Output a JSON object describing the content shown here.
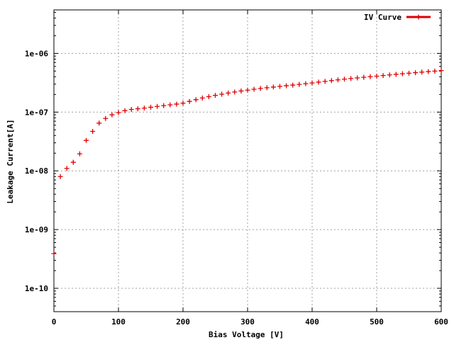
{
  "chart_data": {
    "type": "scatter",
    "title": "",
    "xlabel": "Bias Voltage [V]",
    "ylabel": "Leakage Current[A]",
    "xlim": [
      0,
      600
    ],
    "ylim": [
      4e-11,
      5.5e-06
    ],
    "yscale": "log",
    "grid": true,
    "legend_position": "top-right",
    "x_ticks": [
      0,
      100,
      200,
      300,
      400,
      500,
      600
    ],
    "x_tick_labels": [
      "0",
      "100",
      "200",
      "300",
      "400",
      "500",
      "600"
    ],
    "y_ticks": [
      1e-10,
      1e-09,
      1e-08,
      1e-07,
      1e-06
    ],
    "y_tick_labels": [
      "1e-10",
      "1e-09",
      "1e-08",
      "1e-07",
      "1e-06"
    ],
    "series": [
      {
        "name": "IV Curve",
        "color": "#e00000",
        "marker": "plus",
        "x": [
          0,
          10,
          20,
          30,
          40,
          50,
          60,
          70,
          80,
          90,
          100,
          110,
          120,
          130,
          140,
          150,
          160,
          170,
          180,
          190,
          200,
          210,
          220,
          230,
          240,
          250,
          260,
          270,
          280,
          290,
          300,
          310,
          320,
          330,
          340,
          350,
          360,
          370,
          380,
          390,
          400,
          410,
          420,
          430,
          440,
          450,
          460,
          470,
          480,
          490,
          500,
          510,
          520,
          530,
          540,
          550,
          560,
          570,
          580,
          590,
          600
        ],
        "y": [
          3.9e-10,
          8e-09,
          1.1e-08,
          1.4e-08,
          1.95e-08,
          3.3e-08,
          4.7e-08,
          6.5e-08,
          7.8e-08,
          9e-08,
          9.8e-08,
          1.06e-07,
          1.11e-07,
          1.14e-07,
          1.17e-07,
          1.21e-07,
          1.25e-07,
          1.29e-07,
          1.33e-07,
          1.37e-07,
          1.42e-07,
          1.52e-07,
          1.63e-07,
          1.74e-07,
          1.83e-07,
          1.93e-07,
          2.02e-07,
          2.11e-07,
          2.2e-07,
          2.29e-07,
          2.37e-07,
          2.45e-07,
          2.53e-07,
          2.6e-07,
          2.67e-07,
          2.74e-07,
          2.82e-07,
          2.89e-07,
          2.97e-07,
          3.05e-07,
          3.14e-07,
          3.24e-07,
          3.34e-07,
          3.44e-07,
          3.54e-07,
          3.64e-07,
          3.73e-07,
          3.82e-07,
          3.92e-07,
          4.01e-07,
          4.1e-07,
          4.2e-07,
          4.3e-07,
          4.4e-07,
          4.5e-07,
          4.6e-07,
          4.7e-07,
          4.8e-07,
          4.9e-07,
          5e-07,
          5.1e-07
        ]
      }
    ]
  }
}
